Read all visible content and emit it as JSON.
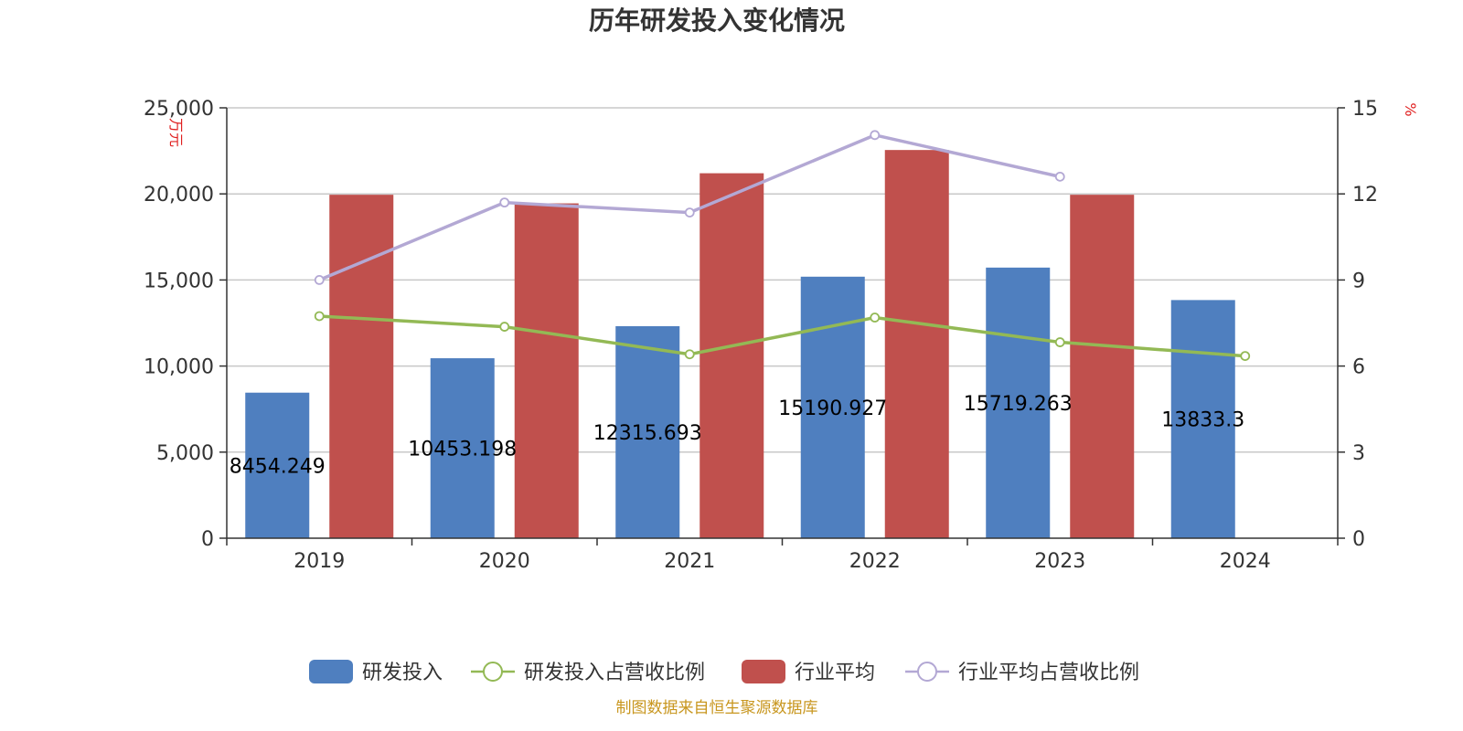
{
  "chart_data": {
    "type": "bar",
    "title": "历年研发投入变化情况",
    "categories": [
      "2019",
      "2020",
      "2021",
      "2022",
      "2023",
      "2024"
    ],
    "left_axis": {
      "unit": "万元",
      "ylim": [
        0,
        25000
      ],
      "ticks": [
        "0",
        "5,000",
        "10,000",
        "15,000",
        "20,000",
        "25,000"
      ],
      "tick_values": [
        0,
        5000,
        10000,
        15000,
        20000,
        25000
      ]
    },
    "right_axis": {
      "unit": "%",
      "ylim": [
        0,
        15
      ],
      "ticks": [
        "0",
        "3",
        "6",
        "9",
        "12",
        "15"
      ],
      "tick_values": [
        0,
        3,
        6,
        9,
        12,
        15
      ]
    },
    "grid": true,
    "legend_position": "bottom",
    "series": [
      {
        "name": "研发投入",
        "type": "bar",
        "axis": "left",
        "color": "#4f7fbf",
        "values": [
          8454.249,
          10453.198,
          12315.693,
          15190.927,
          15719.263,
          13833.3
        ],
        "labels": [
          "8454.249",
          "10453.198",
          "12315.693",
          "15190.927",
          "15719.263",
          "13833.3"
        ]
      },
      {
        "name": "研发投入占营收比例",
        "type": "line",
        "axis": "right",
        "color": "#93b955",
        "values": [
          7.74,
          7.37,
          6.41,
          7.69,
          6.83,
          6.35
        ]
      },
      {
        "name": "行业平均",
        "type": "bar",
        "axis": "left",
        "color": "#c0504d",
        "values": [
          19950,
          19450,
          21200,
          22550,
          19950,
          null
        ]
      },
      {
        "name": "行业平均占营收比例",
        "type": "line",
        "axis": "right",
        "color": "#b3a8d4",
        "values": [
          9.0,
          11.7,
          11.35,
          14.05,
          12.6,
          null
        ]
      }
    ],
    "source": "制图数据来自恒生聚源数据库"
  }
}
